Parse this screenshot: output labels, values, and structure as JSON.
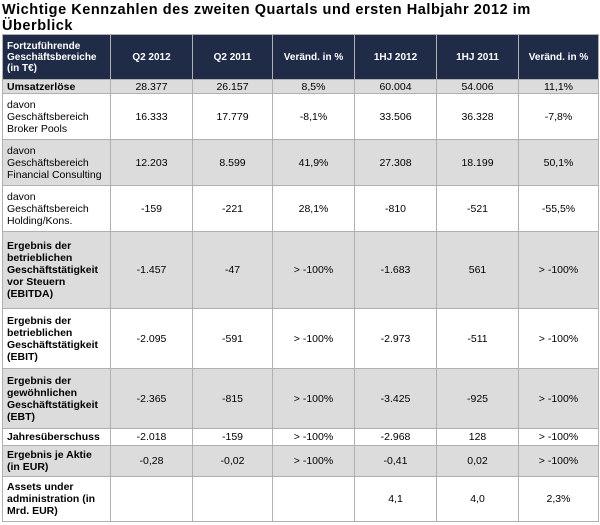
{
  "title": "Wichtige Kennzahlen des zweiten Quartals und ersten Halbjahr 2012 im Überblick",
  "table": {
    "headers": [
      "Fortzuführende Geschäftsbereiche (in T€)",
      "Q2 2012",
      "Q2 2011",
      "Veränd. in %",
      "1HJ 2012",
      "1HJ 2011",
      "Veränd. in %"
    ],
    "rows": [
      {
        "label": "Umsatzerlöse",
        "bold": true,
        "values": [
          "28.377",
          "26.157",
          "8,5%",
          "60.004",
          "54.006",
          "11,1%"
        ]
      },
      {
        "label": "davon Geschäftsbereich Broker Pools",
        "bold": false,
        "values": [
          "16.333",
          "17.779",
          "-8,1%",
          "33.506",
          "36.328",
          "-7,8%"
        ]
      },
      {
        "label": "davon Geschäftsbereich Financial Consulting",
        "bold": false,
        "values": [
          "12.203",
          "8.599",
          "41,9%",
          "27.308",
          "18.199",
          "50,1%"
        ]
      },
      {
        "label": "davon Geschäftsbereich Holding/Kons.",
        "bold": false,
        "values": [
          "-159",
          "-221",
          "28,1%",
          "-810",
          "-521",
          "-55,5%"
        ]
      },
      {
        "label": "Ergebnis der betrieblichen Geschäftstätigkeit vor Steuern (EBITDA)",
        "bold": true,
        "values": [
          "-1.457",
          "-47",
          "> -100%",
          "-1.683",
          "561",
          "> -100%"
        ]
      },
      {
        "label": "Ergebnis der betrieblichen Geschäftstätigkeit (EBIT)",
        "bold": true,
        "values": [
          "-2.095",
          "-591",
          "> -100%",
          "-2.973",
          "-511",
          "> -100%"
        ]
      },
      {
        "label": "Ergebnis der gewöhnlichen Geschäftstätigkeit (EBT)",
        "bold": true,
        "values": [
          "-2.365",
          "-815",
          "> -100%",
          "-3.425",
          "-925",
          "> -100%"
        ]
      },
      {
        "label": "Jahresüberschuss",
        "bold": true,
        "values": [
          "-2.018",
          "-159",
          "> -100%",
          "-2.968",
          "128",
          "> -100%"
        ]
      },
      {
        "label": "Ergebnis je Aktie (in EUR)",
        "bold": true,
        "values": [
          "-0,28",
          "-0,02",
          "> -100%",
          "-0,41",
          "0,02",
          "> -100%"
        ]
      },
      {
        "label": "Assets under administration (in Mrd. EUR)",
        "bold": true,
        "values": [
          "",
          "",
          "",
          "4,1",
          "4,0",
          "2,3%"
        ]
      }
    ]
  }
}
